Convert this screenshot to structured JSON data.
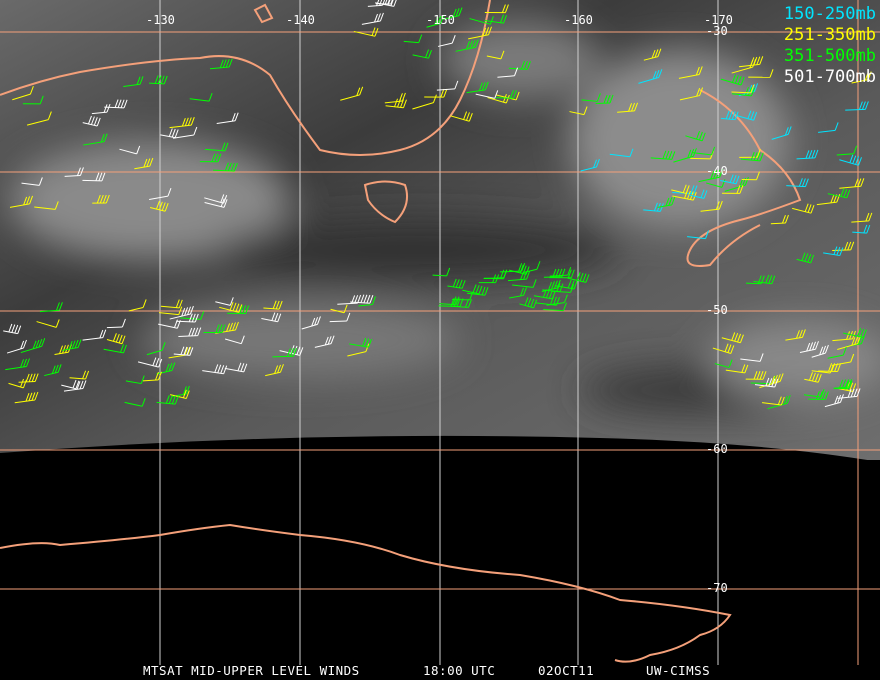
{
  "map": {
    "longitude_labels": [
      "-130",
      "-140",
      "-150",
      "-160",
      "-170"
    ],
    "latitude_labels": [
      "-30",
      "-40",
      "-50",
      "-60",
      "-70"
    ],
    "colors": {
      "coastline": "#f4a07a",
      "latitude_grid": "#f4a07a",
      "longitude_grid": "#d0d0d0",
      "background": "#000000"
    }
  },
  "legend": [
    {
      "label": "150-250mb",
      "color": "#00e5ff"
    },
    {
      "label": "251-350mb",
      "color": "#ffff00"
    },
    {
      "label": "351-500mb",
      "color": "#00ff00"
    },
    {
      "label": "501-700mb",
      "color": "#ffffff"
    }
  ],
  "caption": {
    "product": "MTSAT MID-UPPER LEVEL WINDS",
    "time": "18:00 UTC",
    "date": "02OCT11",
    "source": "UW-CIMSS"
  }
}
